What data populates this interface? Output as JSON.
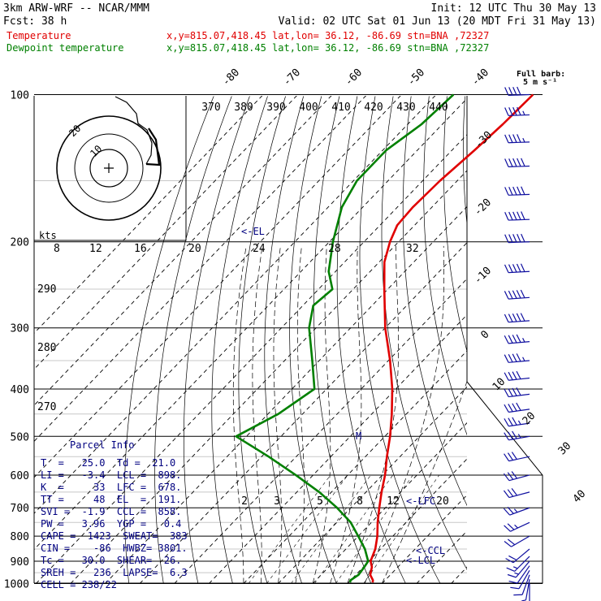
{
  "header": {
    "model": "3km ARW-WRF -- NCAR/MMM",
    "init": "Init: 12 UTC Thu 30 May 13",
    "fcst": "Fcst:   38 h",
    "valid": "Valid: 02 UTC Sat 01 Jun 13 (20 MDT Fri 31 May 13)"
  },
  "legend": [
    {
      "label": "Temperature",
      "location": "x,y=815.07,418.45   lat,lon= 36.12, -86.69  stn=BNA ,72327",
      "color": "#e00000"
    },
    {
      "label": "Dewpoint temperature",
      "location": "x,y=815.07,418.45   lat,lon= 36.12, -86.69  stn=BNA ,72327",
      "color": "#008000"
    }
  ],
  "wind_key": {
    "title": "Full barb:",
    "value": "5 m s⁻¹"
  },
  "annotations": {
    "el": "<-EL",
    "lfc": "<-LFC",
    "ccl": "<-CCL",
    "lcl": "<-LCL",
    "m": "M"
  },
  "hodograph": {
    "ring_labels": [
      "10",
      "20"
    ],
    "kts_label": "kts",
    "speed_labels": [
      "8",
      "12",
      "16",
      "20",
      "24",
      "28",
      "32"
    ]
  },
  "parcel_info": {
    "title": "Parcel Info",
    "rows": [
      "T  =   25.0  Td =  21.0",
      "LI =   -3.4  LCL =  898.",
      "K  =     33  LFC =  678.",
      "TT =     48  EL  =  191.",
      "SVI =  -1.9  CCL =  858.",
      "PW =   3.96  YGP =   0.4",
      "CAPE =  1423  SWEAT=  383",
      "CIN =    -86  HWBZ= 3801.",
      "Tc =   30.0  SHEAR=  26.",
      "SREH =   236  LAPSE=  6.3",
      "CELL = 238/22"
    ]
  },
  "chart_data": {
    "type": "skew-t",
    "y_axis": {
      "label": "pressure (hPa)",
      "ticks": [
        "100",
        "200",
        "300",
        "400",
        "500",
        "600",
        "700",
        "800",
        "900",
        "1000"
      ]
    },
    "isotherm_labels": [
      "-80",
      "-70",
      "-60",
      "-50",
      "-40",
      "-30",
      "-20",
      "-10",
      "0",
      "10",
      "20",
      "30",
      "40"
    ],
    "theta_labels": [
      "370",
      "380",
      "390",
      "400",
      "410",
      "420",
      "430",
      "440"
    ],
    "theta_left_labels": [
      "290",
      "280",
      "270"
    ],
    "mixing_ratio_labels": [
      "2",
      "3",
      "5",
      "8",
      "12",
      "20"
    ],
    "series": [
      {
        "name": "Temperature",
        "color": "#e00000",
        "points": [
          [
            995,
            27
          ],
          [
            985,
            26.5
          ],
          [
            960,
            24.2
          ],
          [
            925,
            22.5
          ],
          [
            900,
            20.5
          ],
          [
            850,
            18.5
          ],
          [
            800,
            15.5
          ],
          [
            750,
            11.8
          ],
          [
            700,
            8.2
          ],
          [
            650,
            4.5
          ],
          [
            600,
            0.8
          ],
          [
            550,
            -3.8
          ],
          [
            500,
            -8.5
          ],
          [
            450,
            -14.2
          ],
          [
            400,
            -21
          ],
          [
            350,
            -29.5
          ],
          [
            300,
            -40
          ],
          [
            250,
            -51
          ],
          [
            220,
            -58.5
          ],
          [
            200,
            -62.5
          ],
          [
            185,
            -65
          ],
          [
            170,
            -65.5
          ],
          [
            150,
            -65
          ],
          [
            130,
            -63.5
          ],
          [
            115,
            -62.5
          ],
          [
            100,
            -62
          ]
        ]
      },
      {
        "name": "Dewpoint temperature",
        "color": "#008000",
        "points": [
          [
            995,
            20.5
          ],
          [
            985,
            20
          ],
          [
            960,
            20.8
          ],
          [
            925,
            20.3
          ],
          [
            900,
            19.8
          ],
          [
            850,
            15.5
          ],
          [
            800,
            10
          ],
          [
            750,
            4
          ],
          [
            700,
            -4
          ],
          [
            650,
            -13.5
          ],
          [
            600,
            -25
          ],
          [
            550,
            -38
          ],
          [
            500,
            -53
          ],
          [
            450,
            -47
          ],
          [
            400,
            -43.5
          ],
          [
            350,
            -52
          ],
          [
            300,
            -62
          ],
          [
            270,
            -67
          ],
          [
            250,
            -66
          ],
          [
            230,
            -72
          ],
          [
            200,
            -79
          ],
          [
            170,
            -86
          ],
          [
            150,
            -89
          ],
          [
            130,
            -89
          ],
          [
            115,
            -86
          ],
          [
            100,
            -85
          ]
        ]
      }
    ],
    "wind_barbs": [
      {
        "p": 1000,
        "dir": 180,
        "speed": 3
      },
      {
        "p": 980,
        "dir": 190,
        "speed": 4
      },
      {
        "p": 960,
        "dir": 200,
        "speed": 5
      },
      {
        "p": 940,
        "dir": 210,
        "speed": 6
      },
      {
        "p": 920,
        "dir": 215,
        "speed": 7
      },
      {
        "p": 900,
        "dir": 220,
        "speed": 8
      },
      {
        "p": 880,
        "dir": 225,
        "speed": 9
      },
      {
        "p": 850,
        "dir": 230,
        "speed": 10
      },
      {
        "p": 800,
        "dir": 240,
        "speed": 12
      },
      {
        "p": 750,
        "dir": 245,
        "speed": 13
      },
      {
        "p": 700,
        "dir": 250,
        "speed": 14
      },
      {
        "p": 650,
        "dir": 255,
        "speed": 15
      },
      {
        "p": 600,
        "dir": 255,
        "speed": 16
      },
      {
        "p": 550,
        "dir": 258,
        "speed": 17
      },
      {
        "p": 500,
        "dir": 260,
        "speed": 18
      },
      {
        "p": 470,
        "dir": 262,
        "speed": 19
      },
      {
        "p": 440,
        "dir": 262,
        "speed": 20
      },
      {
        "p": 410,
        "dir": 263,
        "speed": 21
      },
      {
        "p": 380,
        "dir": 264,
        "speed": 22
      },
      {
        "p": 350,
        "dir": 265,
        "speed": 23
      },
      {
        "p": 320,
        "dir": 265,
        "speed": 24
      },
      {
        "p": 290,
        "dir": 266,
        "speed": 25
      },
      {
        "p": 260,
        "dir": 266,
        "speed": 26
      },
      {
        "p": 230,
        "dir": 267,
        "speed": 26
      },
      {
        "p": 200,
        "dir": 268,
        "speed": 27
      },
      {
        "p": 180,
        "dir": 268,
        "speed": 27
      },
      {
        "p": 160,
        "dir": 268,
        "speed": 26
      },
      {
        "p": 140,
        "dir": 268,
        "speed": 25
      },
      {
        "p": 125,
        "dir": 268,
        "speed": 24
      },
      {
        "p": 110,
        "dir": 268,
        "speed": 23
      },
      {
        "p": 100,
        "dir": 268,
        "speed": 22
      }
    ]
  }
}
